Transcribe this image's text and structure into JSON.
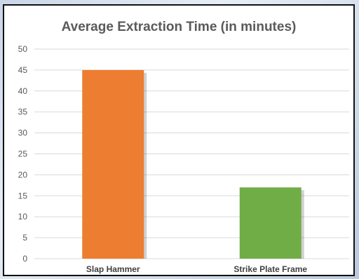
{
  "chart_data": {
    "type": "bar",
    "title": "Average Extraction Time (in minutes)",
    "xlabel": "",
    "ylabel": "",
    "categories": [
      "Slap Hammer",
      "Strike Plate Frame"
    ],
    "values": [
      45,
      17
    ],
    "bar_colors": [
      "#ed7d31",
      "#70ad47"
    ],
    "ylim": [
      0,
      50
    ],
    "yticks": [
      0,
      5,
      10,
      15,
      20,
      25,
      30,
      35,
      40,
      45,
      50
    ],
    "grid": true,
    "legend": "none"
  }
}
